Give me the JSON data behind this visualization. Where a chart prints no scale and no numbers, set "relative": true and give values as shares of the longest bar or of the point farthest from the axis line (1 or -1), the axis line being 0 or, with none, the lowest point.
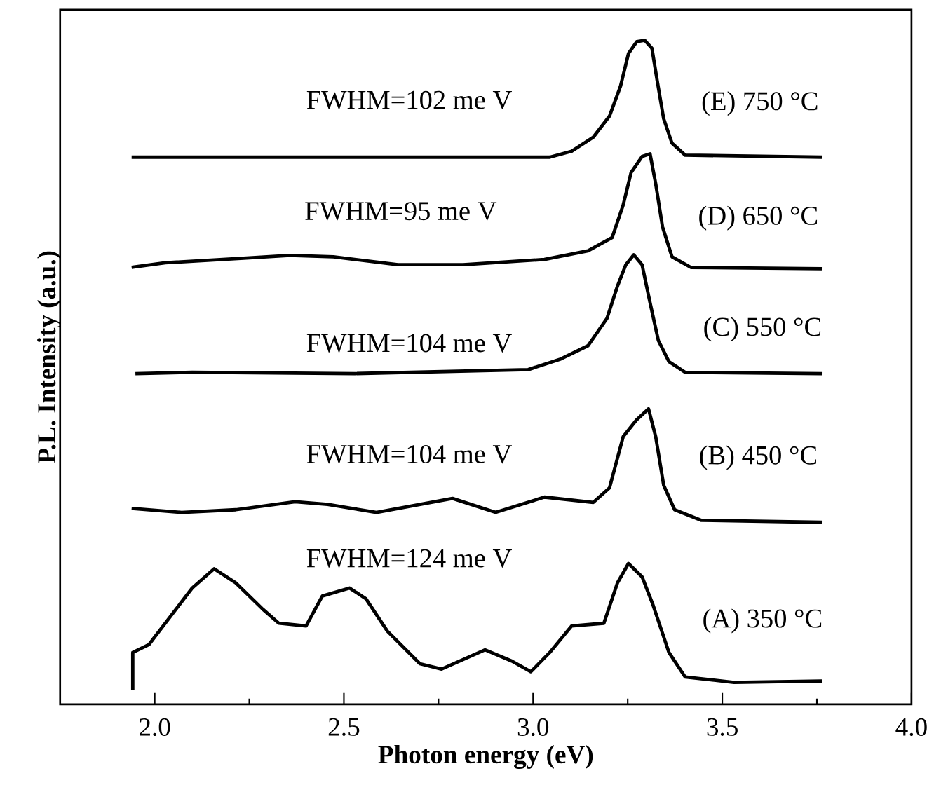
{
  "chart_data": {
    "type": "line",
    "relative": true,
    "xlabel": "**Photon energy (eV)**",
    "ylabel": "**P.L. Intensity (a.u.)**",
    "xlim": [
      1.75,
      4.0
    ],
    "xticks": [
      {
        "value": 2.0,
        "label": "2.0"
      },
      {
        "value": 2.5,
        "label": "2.5"
      },
      {
        "value": 3.0,
        "label": "3.0"
      },
      {
        "value": 3.5,
        "label": "3.5"
      },
      {
        "value": 4.0,
        "label": "4.0"
      }
    ],
    "grid": false,
    "marker": "none",
    "line_style": "solid",
    "tick_labels": "x",
    "series": [
      {
        "name": "(A) 350 °C",
        "color": "#000000",
        "x": [
          1.942,
          1.942,
          1.985,
          2.056,
          2.099,
          2.157,
          2.214,
          2.286,
          2.328,
          2.4,
          2.443,
          2.515,
          2.558,
          2.615,
          2.701,
          2.758,
          2.873,
          2.944,
          2.994,
          3.044,
          3.102,
          3.187,
          3.223,
          3.252,
          3.288,
          3.316,
          3.359,
          3.402,
          3.531,
          3.763
        ],
        "values": [
          0.021,
          0.078,
          0.09,
          0.143,
          0.175,
          0.204,
          0.183,
          0.143,
          0.122,
          0.118,
          0.163,
          0.175,
          0.159,
          0.11,
          0.061,
          0.053,
          0.082,
          0.065,
          0.049,
          0.078,
          0.118,
          0.122,
          0.183,
          0.212,
          0.192,
          0.151,
          0.078,
          0.041,
          0.033,
          0.035
        ]
      },
      {
        "name": "(B) 450 °C",
        "color": "#000000",
        "x": [
          1.939,
          2.071,
          2.214,
          2.371,
          2.457,
          2.586,
          2.787,
          2.901,
          3.03,
          3.159,
          3.202,
          3.238,
          3.273,
          3.305,
          3.324,
          3.345,
          3.374,
          3.445,
          3.763
        ],
        "values": [
          0.295,
          0.289,
          0.293,
          0.305,
          0.301,
          0.289,
          0.31,
          0.289,
          0.312,
          0.304,
          0.326,
          0.403,
          0.428,
          0.445,
          0.403,
          0.33,
          0.293,
          0.277,
          0.274
        ]
      },
      {
        "name": "(C) 550 °C",
        "color": "#000000",
        "x": [
          1.949,
          2.099,
          2.529,
          2.987,
          3.073,
          3.145,
          3.195,
          3.223,
          3.245,
          3.266,
          3.288,
          3.309,
          3.331,
          3.359,
          3.402,
          3.763
        ],
        "values": [
          0.498,
          0.5,
          0.498,
          0.504,
          0.52,
          0.54,
          0.581,
          0.63,
          0.662,
          0.677,
          0.662,
          0.605,
          0.548,
          0.516,
          0.5,
          0.498
        ]
      },
      {
        "name": "(D) 650 °C",
        "color": "#000000",
        "x": [
          1.939,
          2.028,
          2.243,
          2.357,
          2.472,
          2.643,
          2.815,
          3.03,
          3.145,
          3.209,
          3.238,
          3.259,
          3.288,
          3.309,
          3.324,
          3.342,
          3.367,
          3.417,
          3.763
        ],
        "values": [
          0.658,
          0.665,
          0.672,
          0.676,
          0.674,
          0.662,
          0.662,
          0.67,
          0.683,
          0.703,
          0.752,
          0.801,
          0.825,
          0.829,
          0.784,
          0.719,
          0.674,
          0.658,
          0.656
        ]
      },
      {
        "name": "(E) 750 °C",
        "color": "#000000",
        "x": [
          1.939,
          3.044,
          3.102,
          3.159,
          3.202,
          3.231,
          3.252,
          3.274,
          3.295,
          3.314,
          3.328,
          3.345,
          3.367,
          3.402,
          3.763
        ],
        "values": [
          0.824,
          0.824,
          0.833,
          0.854,
          0.886,
          0.931,
          0.98,
          0.998,
          1.0,
          0.988,
          0.939,
          0.882,
          0.845,
          0.827,
          0.824
        ]
      }
    ],
    "annotations": [
      "FWHM=102 me V",
      "FWHM=95 me V",
      "FWHM=104 me V",
      "FWHM=104 me V",
      "FWHM=124 me V"
    ]
  }
}
